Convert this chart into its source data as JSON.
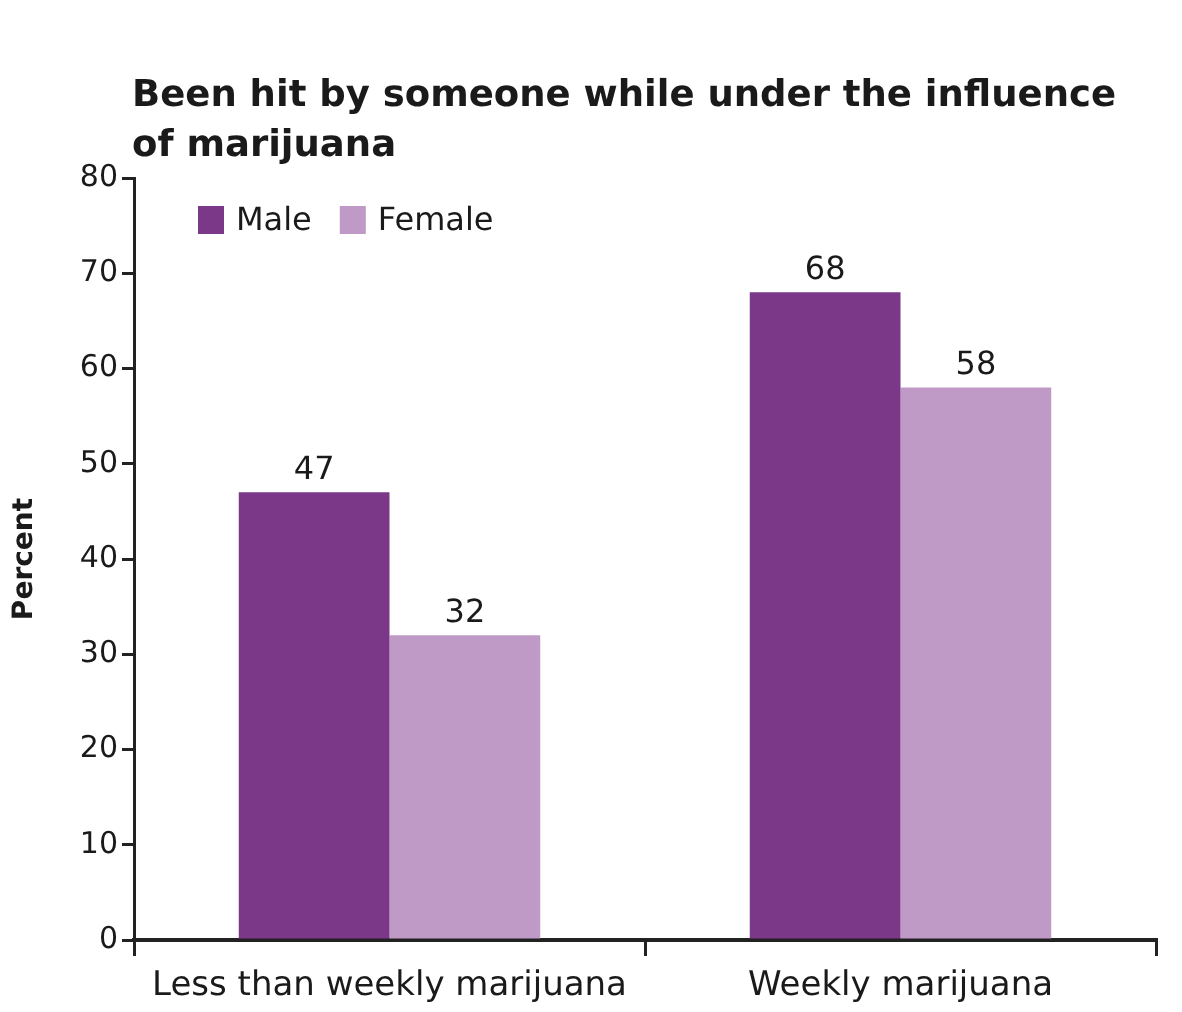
{
  "chart_data": {
    "type": "bar",
    "title": "Been hit by someone while under the influence of marijuana",
    "ylabel": "Percent",
    "categories": [
      "Less than weekly marijuana",
      "Weekly marijuana"
    ],
    "series": [
      {
        "name": "Male",
        "color": "#7b3888",
        "values": [
          47,
          68
        ]
      },
      {
        "name": "Female",
        "color": "#bf9ac6",
        "values": [
          32,
          58
        ]
      }
    ],
    "ylim": [
      0,
      80
    ],
    "yticks": [
      0,
      10,
      20,
      30,
      40,
      50,
      60,
      70,
      80
    ],
    "legend": "top left",
    "data_labels": true
  }
}
